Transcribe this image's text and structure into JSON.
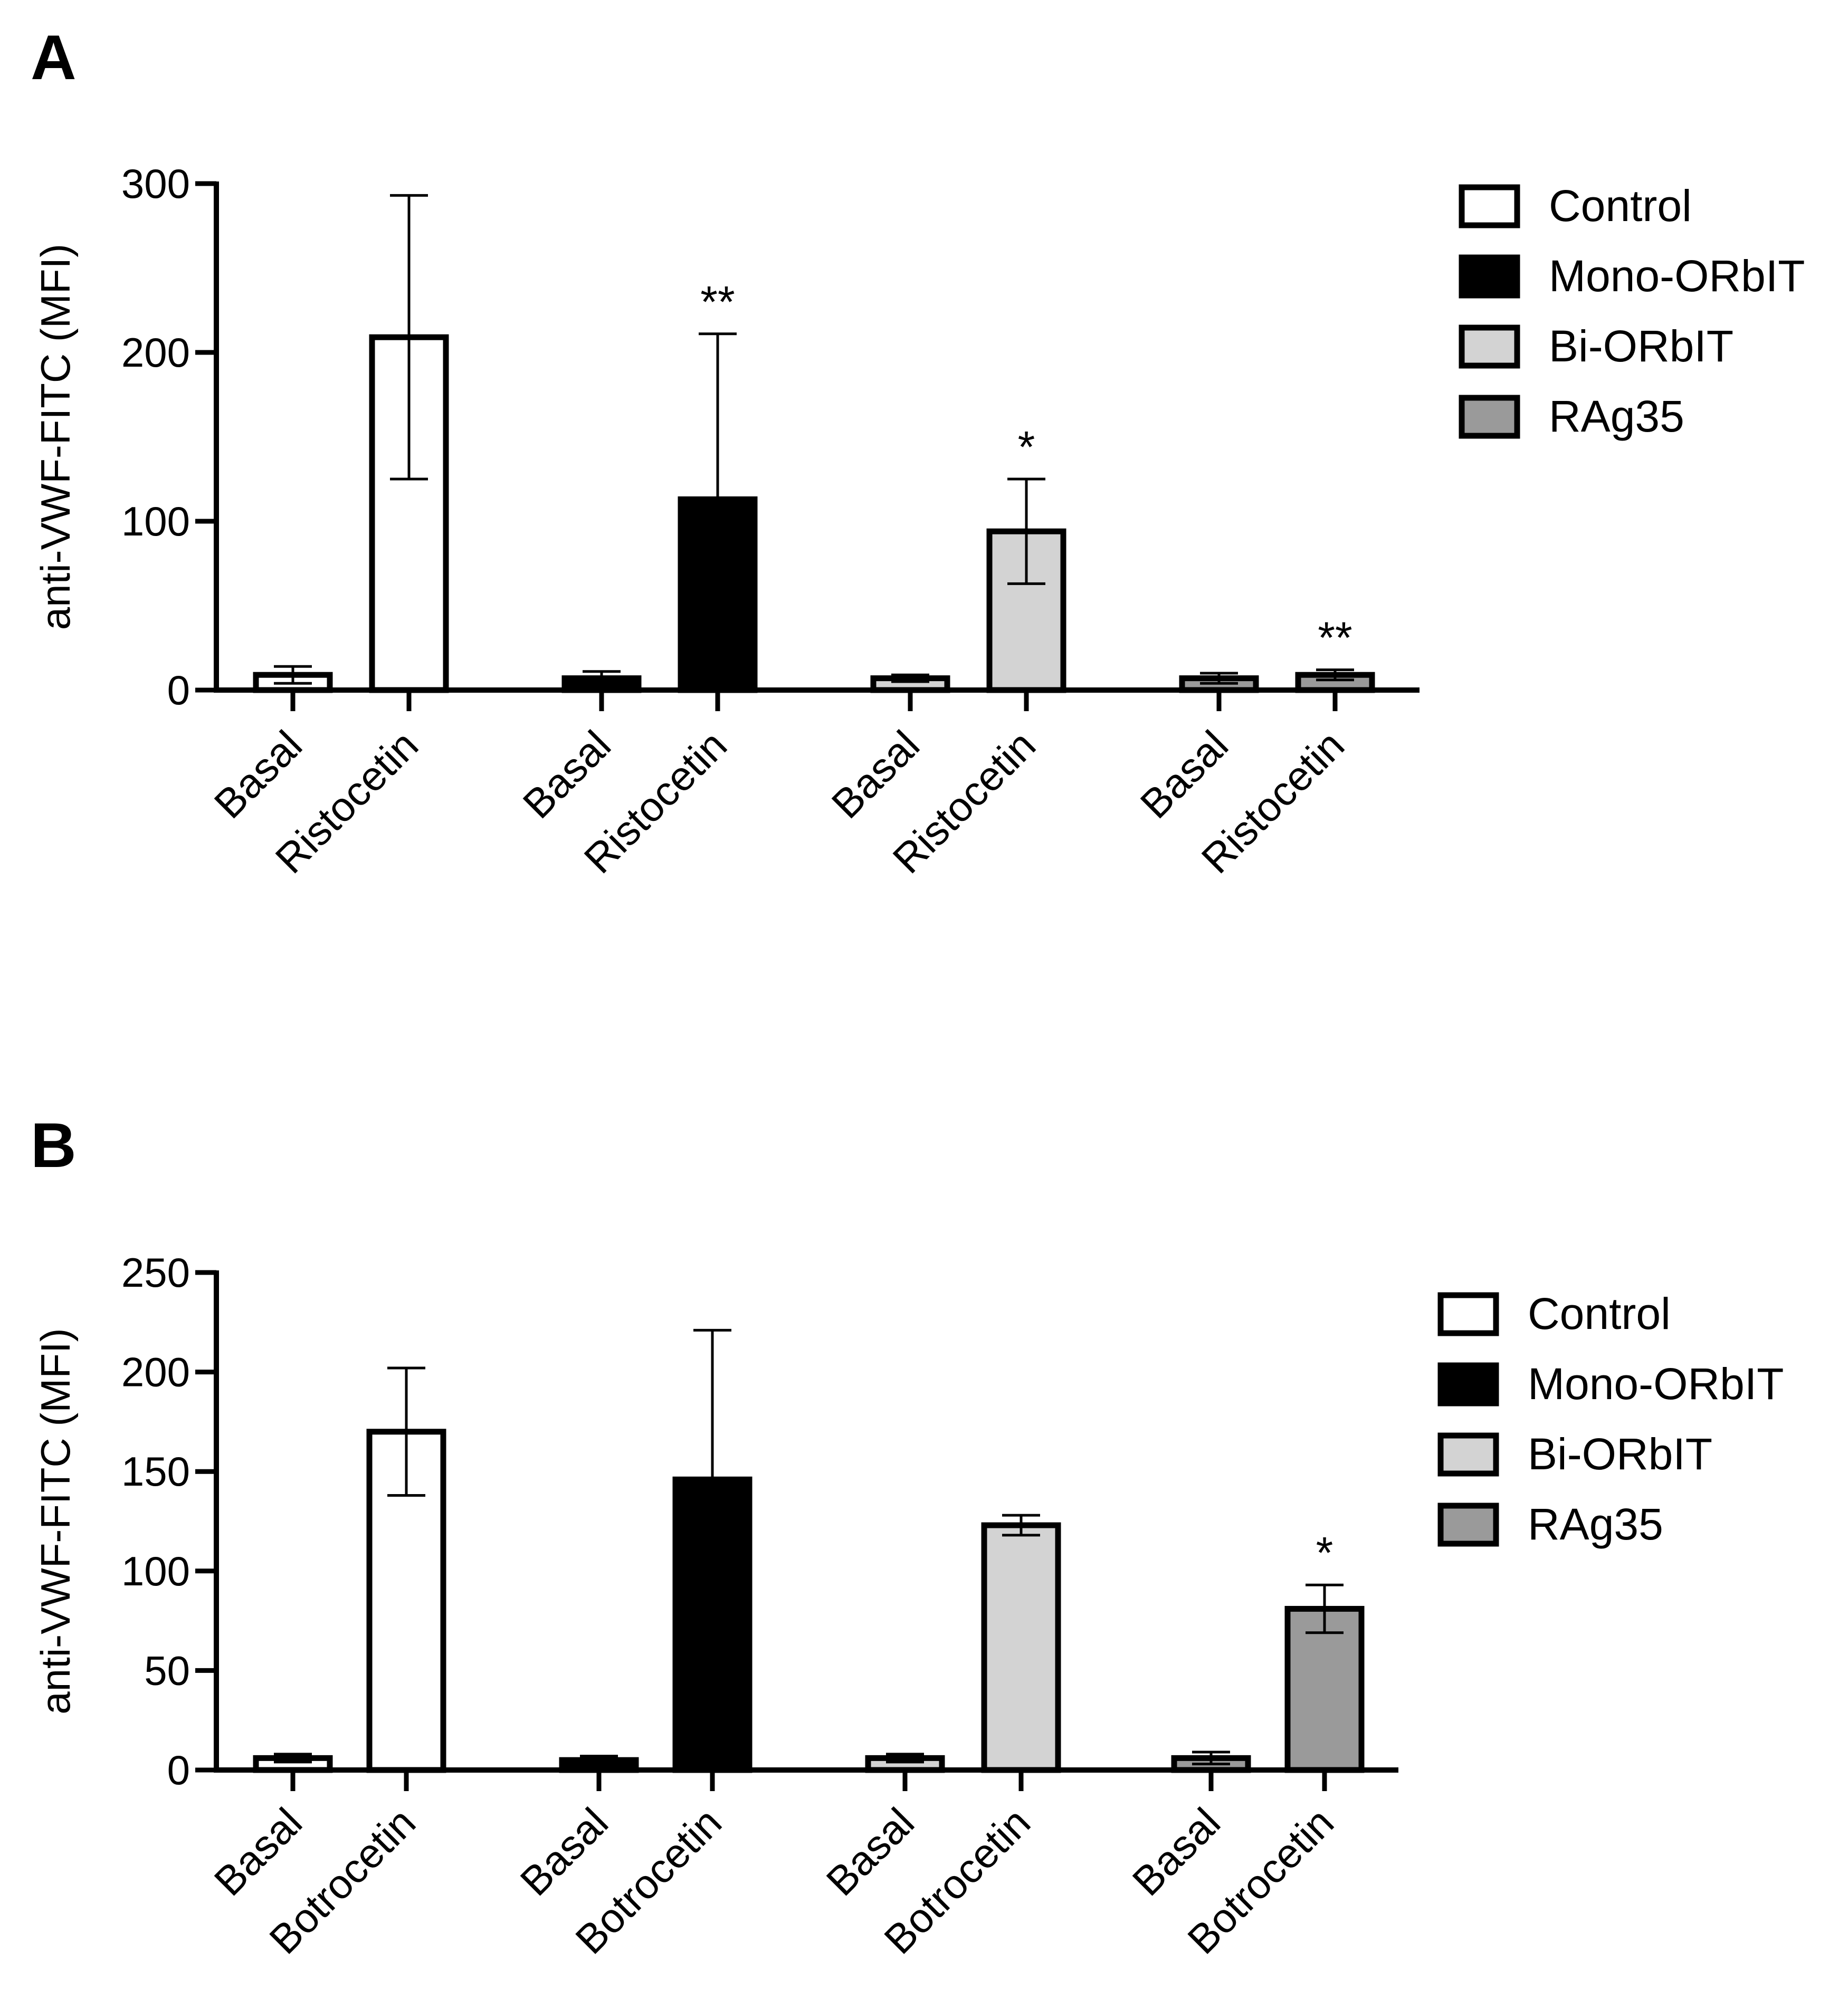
{
  "chart_data": [
    {
      "type": "bar",
      "panel": "A",
      "ylabel": "anti-VWF-FITC (MFI)",
      "ylim": [
        0,
        300
      ],
      "yticks": [
        0,
        100,
        200,
        300
      ],
      "ytick_labels": [
        "0",
        "100",
        "200",
        "300"
      ],
      "legend": [
        {
          "name": "Control",
          "color": "#ffffff"
        },
        {
          "name": "Mono-ORbIT",
          "color": "#000000"
        },
        {
          "name": "Bi-ORbIT",
          "color": "#d3d3d3"
        },
        {
          "name": "RAg35",
          "color": "#9a9a9a"
        }
      ],
      "groups": [
        {
          "series": "Control",
          "color": "#ffffff",
          "bars": [
            {
              "label": "Basal",
              "value": 9,
              "error": 5,
              "sig": ""
            },
            {
              "label": "Ristocetin",
              "value": 209,
              "error": 84,
              "sig": ""
            }
          ]
        },
        {
          "series": "Mono-ORbIT",
          "color": "#000000",
          "bars": [
            {
              "label": "Basal",
              "value": 7,
              "error": 4,
              "sig": ""
            },
            {
              "label": "Ristocetin",
              "value": 113,
              "error": 98,
              "sig": "**"
            }
          ]
        },
        {
          "series": "Bi-ORbIT",
          "color": "#d3d3d3",
          "bars": [
            {
              "label": "Basal",
              "value": 7,
              "error": 2,
              "sig": ""
            },
            {
              "label": "Ristocetin",
              "value": 94,
              "error": 31,
              "sig": "*"
            }
          ]
        },
        {
          "series": "RAg35",
          "color": "#9a9a9a",
          "bars": [
            {
              "label": "Basal",
              "value": 7,
              "error": 3,
              "sig": ""
            },
            {
              "label": "Ristocetin",
              "value": 9,
              "error": 3,
              "sig": "**"
            }
          ]
        }
      ]
    },
    {
      "type": "bar",
      "panel": "B",
      "ylabel": "anti-VWF-FITC (MFI)",
      "ylim": [
        0,
        250
      ],
      "yticks": [
        0,
        50,
        100,
        150,
        200,
        250
      ],
      "ytick_labels": [
        "0",
        "50",
        "100",
        "150",
        "200",
        "250"
      ],
      "legend": [
        {
          "name": "Control",
          "color": "#ffffff"
        },
        {
          "name": "Mono-ORbIT",
          "color": "#000000"
        },
        {
          "name": "Bi-ORbIT",
          "color": "#d3d3d3"
        },
        {
          "name": "RAg35",
          "color": "#9a9a9a"
        }
      ],
      "groups": [
        {
          "series": "Control",
          "color": "#ffffff",
          "bars": [
            {
              "label": "Basal",
              "value": 6,
              "error": 2,
              "sig": ""
            },
            {
              "label": "Botrocetin",
              "value": 170,
              "error": 32,
              "sig": ""
            }
          ]
        },
        {
          "series": "Mono-ORbIT",
          "color": "#000000",
          "bars": [
            {
              "label": "Basal",
              "value": 5,
              "error": 2,
              "sig": ""
            },
            {
              "label": "Botrocetin",
              "value": 146,
              "error": 75,
              "sig": ""
            }
          ]
        },
        {
          "series": "Bi-ORbIT",
          "color": "#d3d3d3",
          "bars": [
            {
              "label": "Basal",
              "value": 6,
              "error": 2,
              "sig": ""
            },
            {
              "label": "Botrocetin",
              "value": 123,
              "error": 5,
              "sig": ""
            }
          ]
        },
        {
          "series": "RAg35",
          "color": "#9a9a9a",
          "bars": [
            {
              "label": "Basal",
              "value": 6,
              "error": 3,
              "sig": ""
            },
            {
              "label": "Botrocetin",
              "value": 81,
              "error": 12,
              "sig": "*"
            }
          ]
        }
      ]
    }
  ]
}
